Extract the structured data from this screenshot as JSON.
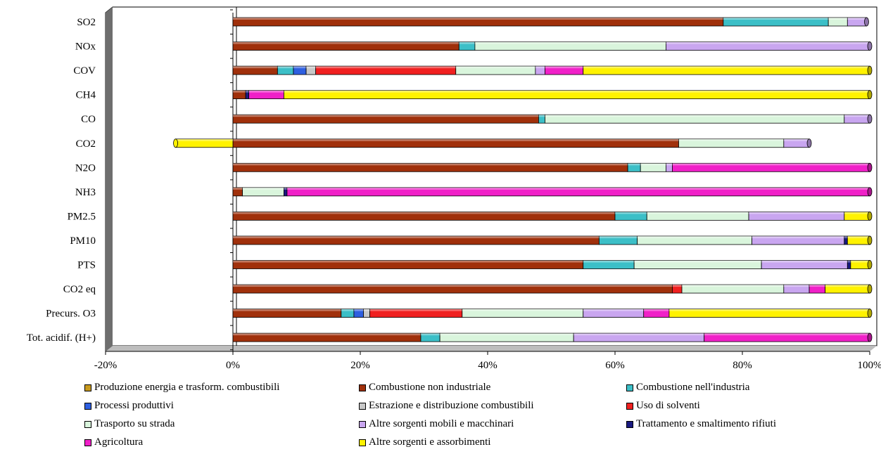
{
  "chart_data": {
    "type": "bar",
    "orientation": "horizontal",
    "stacked": true,
    "categories": [
      "SO2",
      "NOx",
      "COV",
      "CH4",
      "CO",
      "CO2",
      "N2O",
      "NH3",
      "PM2.5",
      "PM10",
      "PTS",
      "CO2 eq",
      "Precurs. O3",
      "Tot. acidif. (H+)"
    ],
    "xlim": [
      -20,
      100
    ],
    "xticks": [
      "-20%",
      "0%",
      "20%",
      "40%",
      "60%",
      "80%",
      "100%"
    ],
    "grid": false,
    "legend_position": "bottom",
    "series": [
      {
        "name": "Produzione energia e trasform. combustibili",
        "color": "#C89A1E",
        "values": [
          0,
          0,
          0,
          0,
          0,
          0,
          0,
          0,
          0,
          0,
          0,
          0,
          0,
          0
        ]
      },
      {
        "name": "Combustione non industriale",
        "color": "#A0300B",
        "values": [
          77,
          35.5,
          7,
          2,
          48,
          70,
          62,
          1.5,
          60,
          57.5,
          55,
          69,
          17,
          29.5
        ]
      },
      {
        "name": "Combustione nell'industria",
        "color": "#3CBFC7",
        "values": [
          16.5,
          2.5,
          2.5,
          0,
          1,
          0,
          2,
          0,
          5,
          6,
          8,
          0,
          2,
          3
        ]
      },
      {
        "name": "Processi produttivi",
        "color": "#2E5FE0",
        "values": [
          0,
          0,
          2,
          0,
          0,
          0,
          0,
          0,
          0,
          0,
          0,
          0,
          1.5,
          0
        ]
      },
      {
        "name": "Estrazione e distribuzione combustibili",
        "color": "#C8C8C8",
        "values": [
          0,
          0,
          1.5,
          0,
          0,
          0,
          0,
          0,
          0,
          0,
          0,
          0,
          1,
          0
        ]
      },
      {
        "name": "Uso di solventi",
        "color": "#F02020",
        "values": [
          0,
          0,
          22,
          0,
          0,
          0,
          0,
          0,
          0,
          0,
          0,
          1.5,
          14.5,
          0
        ]
      },
      {
        "name": "Trasporto su strada",
        "color": "#D9F5DC",
        "values": [
          3,
          30,
          12.5,
          0,
          47,
          16.5,
          4,
          6.5,
          16,
          18,
          20,
          16,
          19,
          21
        ]
      },
      {
        "name": "Altre sorgenti mobili e macchinari",
        "color": "#C9A6F0",
        "values": [
          3,
          32,
          1.5,
          0,
          4,
          4,
          1,
          0,
          15,
          14.5,
          13.5,
          4,
          9.5,
          20.5
        ]
      },
      {
        "name": "Trattamento e smaltimento rifiuti",
        "color": "#1A1A80",
        "values": [
          0,
          0,
          0,
          0.5,
          0,
          0,
          0,
          0.5,
          0,
          0.5,
          0.5,
          0,
          0,
          0
        ]
      },
      {
        "name": "Agricoltura",
        "color": "#F020C8",
        "values": [
          0,
          0,
          6,
          5.5,
          0,
          0,
          31,
          91.5,
          0,
          0,
          0,
          2.5,
          4,
          26
        ]
      },
      {
        "name": "Altre sorgenti e assorbimenti",
        "color": "#FFF200",
        "values": [
          0,
          0,
          45,
          92,
          0,
          0,
          0,
          0,
          4,
          3.5,
          3,
          7,
          31.5,
          0
        ]
      }
    ],
    "negative": {
      "category": "CO2",
      "series": "Altre sorgenti e assorbimenti",
      "value": -9
    }
  }
}
